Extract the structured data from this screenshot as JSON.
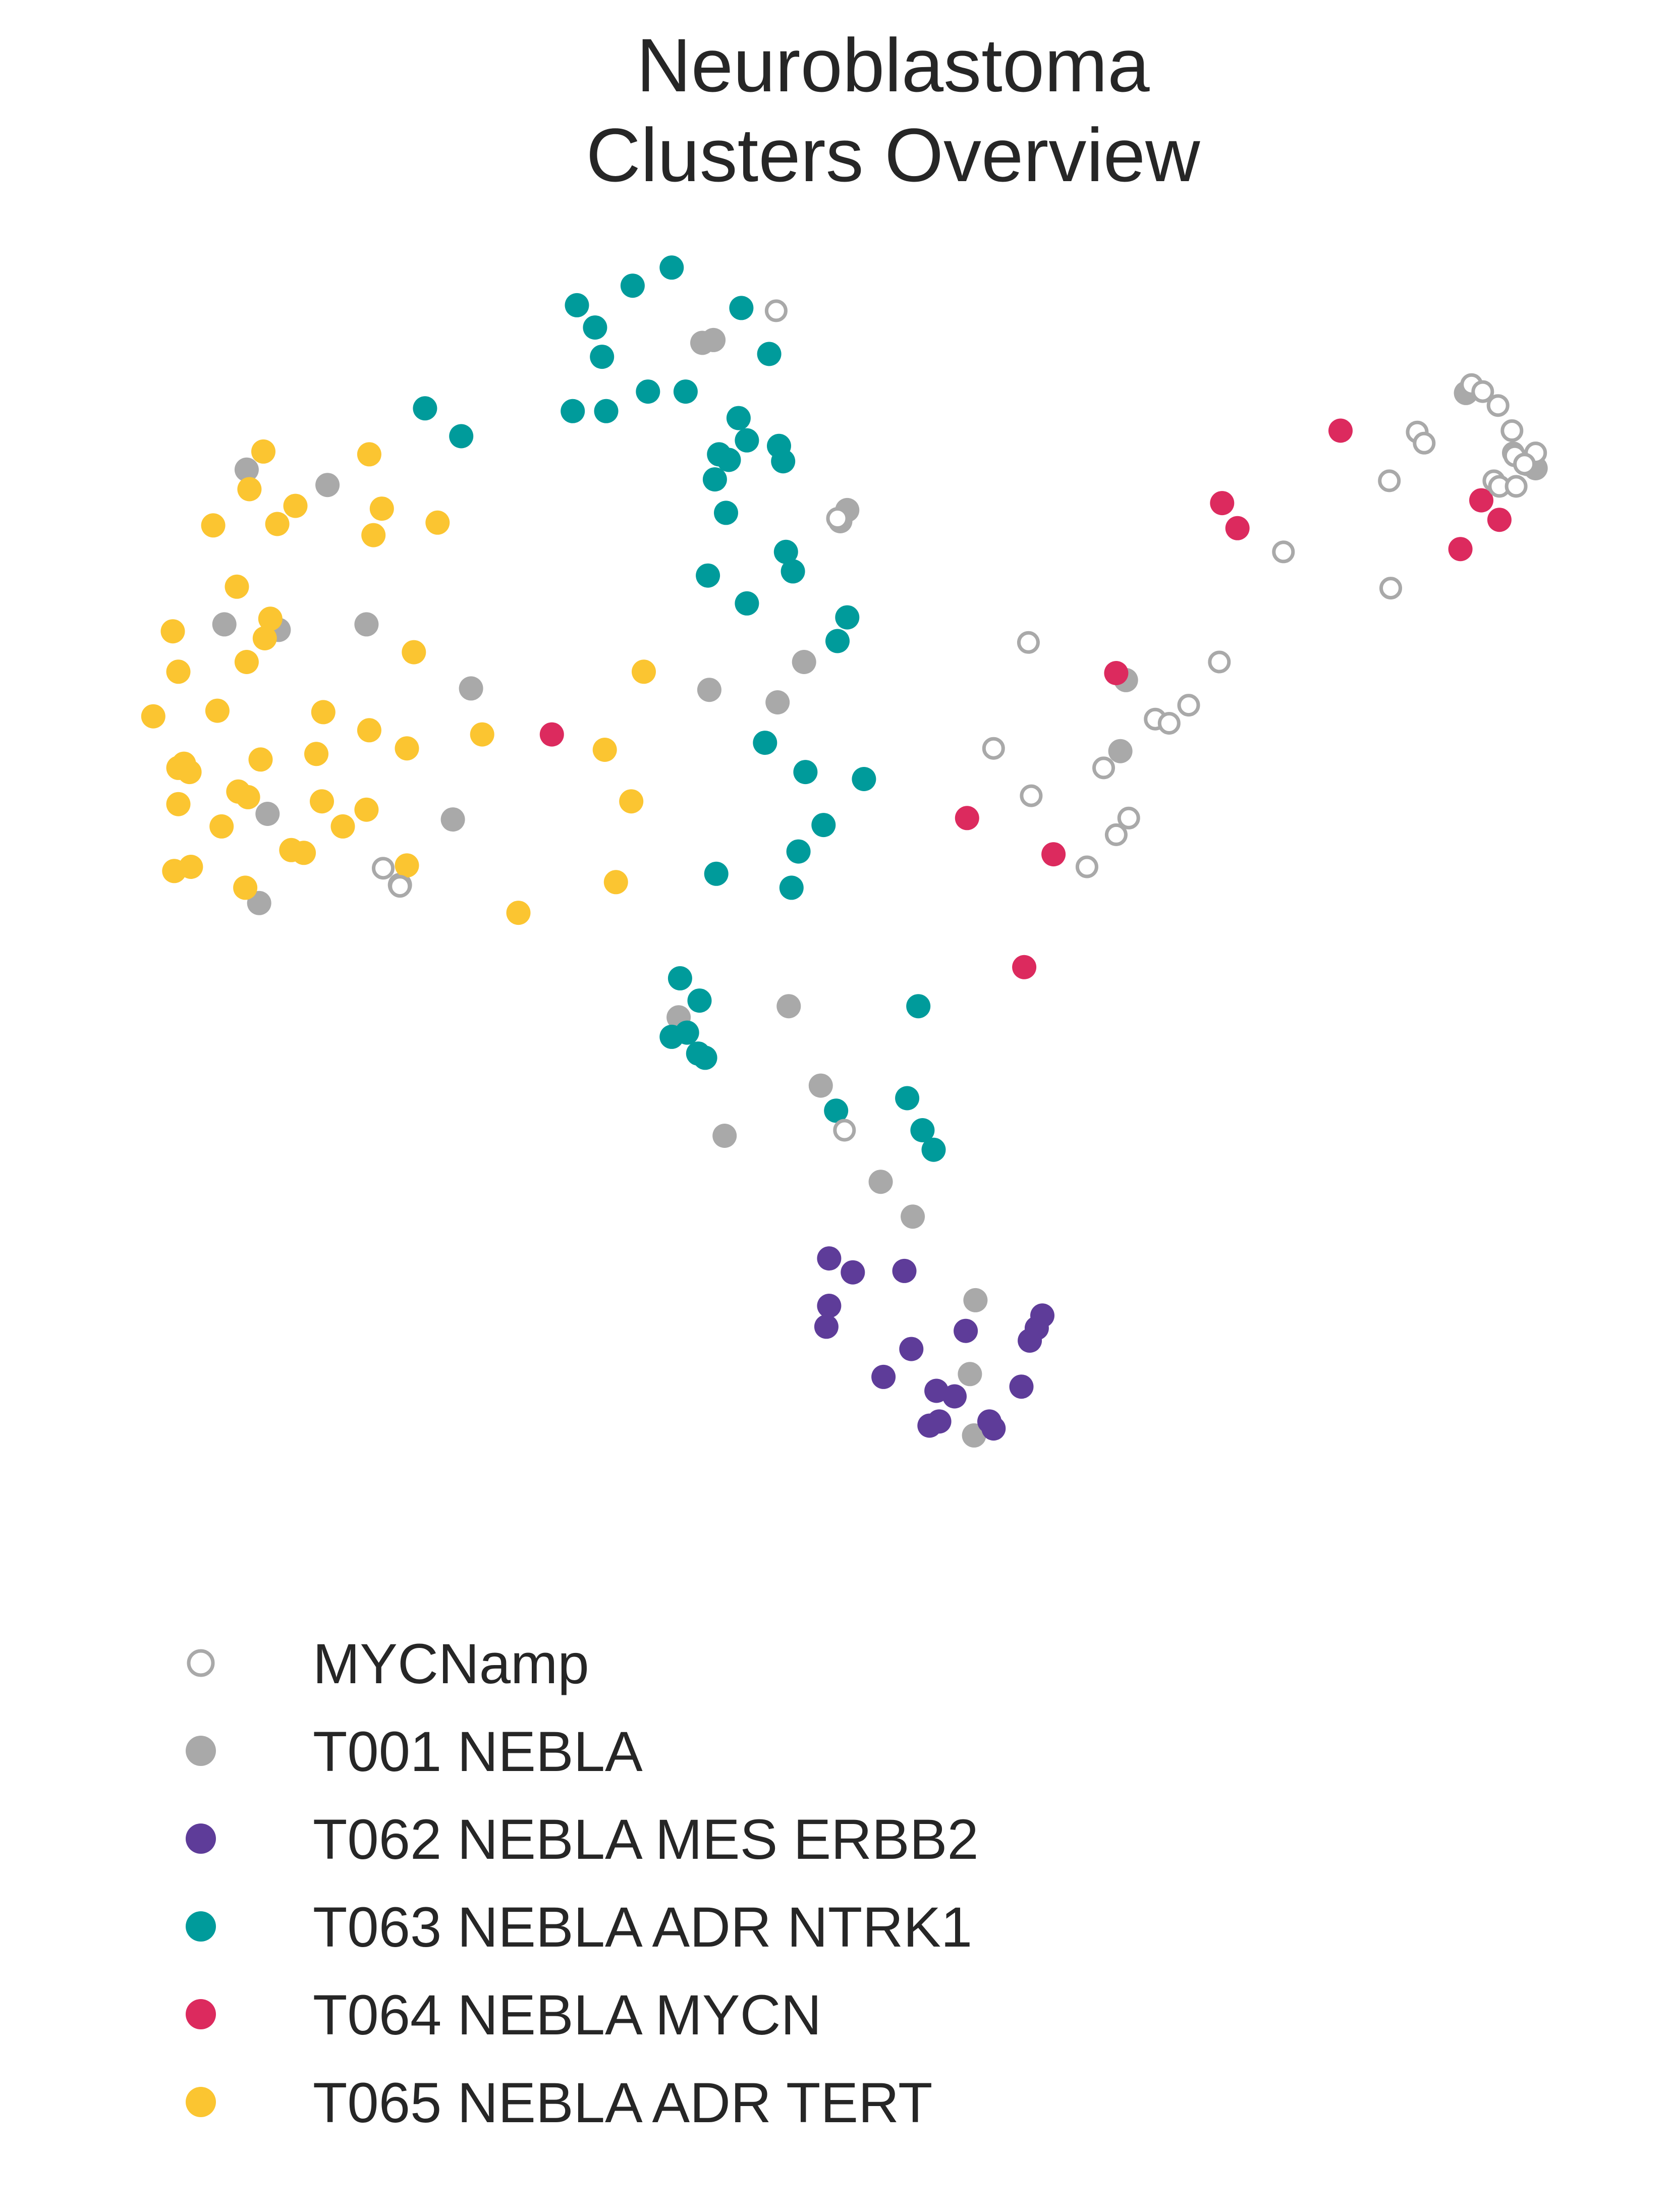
{
  "chart_data": {
    "type": "scatter",
    "title": [
      "Neuroblastoma",
      "Clusters Overview"
    ],
    "xlabel": "",
    "ylabel": "",
    "grid": false,
    "axes_visible": false,
    "legend_placement": "bottom-left",
    "series": [
      {
        "name": "T001 NEBLA",
        "marker": "filled",
        "color": "#a9a9a9",
        "points": [
          [
            177,
            337
          ],
          [
            235,
            348
          ],
          [
            161,
            448
          ],
          [
            200,
            452
          ],
          [
            263,
            448
          ],
          [
            338,
            494
          ],
          [
            325,
            588
          ],
          [
            192,
            584
          ],
          [
            186,
            648
          ],
          [
            287,
            635
          ],
          [
            504,
            246
          ],
          [
            512,
            244
          ],
          [
            608,
            366
          ],
          [
            603,
            374
          ],
          [
            577,
            475
          ],
          [
            509,
            495
          ],
          [
            558,
            504
          ],
          [
            808,
            488
          ],
          [
            804,
            539
          ],
          [
            487,
            730
          ],
          [
            566,
            722
          ],
          [
            589,
            779
          ],
          [
            520,
            815
          ],
          [
            632,
            848
          ],
          [
            655,
            873
          ],
          [
            700,
            933
          ],
          [
            696,
            986
          ],
          [
            699,
            1030
          ],
          [
            1096,
            333
          ],
          [
            1102,
            336
          ],
          [
            1052,
            282
          ]
        ]
      },
      {
        "name": "T062 NEBLA MES ERBB2",
        "marker": "filled",
        "color": "#5e3c99",
        "points": [
          [
            595,
            903
          ],
          [
            612,
            913
          ],
          [
            649,
            912
          ],
          [
            595,
            937
          ],
          [
            593,
            952
          ],
          [
            693,
            955
          ],
          [
            654,
            968
          ],
          [
            634,
            988
          ],
          [
            672,
            998
          ],
          [
            685,
            1002
          ],
          [
            674,
            1020
          ],
          [
            667,
            1023
          ],
          [
            710,
            1020
          ],
          [
            713,
            1025
          ],
          [
            733,
            995
          ],
          [
            739,
            962
          ],
          [
            744,
            953
          ],
          [
            748,
            944
          ]
        ]
      },
      {
        "name": "T063 NEBLA ADR NTRK1",
        "marker": "filled",
        "color": "#009b9b",
        "points": [
          [
            482,
            192
          ],
          [
            454,
            205
          ],
          [
            414,
            219
          ],
          [
            532,
            221
          ],
          [
            427,
            235
          ],
          [
            432,
            256
          ],
          [
            552,
            254
          ],
          [
            465,
            281
          ],
          [
            492,
            281
          ],
          [
            305,
            293
          ],
          [
            411,
            295
          ],
          [
            435,
            295
          ],
          [
            331,
            313
          ],
          [
            530,
            300
          ],
          [
            536,
            316
          ],
          [
            559,
            320
          ],
          [
            516,
            326
          ],
          [
            523,
            330
          ],
          [
            562,
            331
          ],
          [
            513,
            344
          ],
          [
            521,
            368
          ],
          [
            564,
            396
          ],
          [
            569,
            410
          ],
          [
            508,
            413
          ],
          [
            536,
            433
          ],
          [
            608,
            443
          ],
          [
            601,
            460
          ],
          [
            549,
            533
          ],
          [
            578,
            554
          ],
          [
            620,
            559
          ],
          [
            591,
            592
          ],
          [
            573,
            611
          ],
          [
            514,
            627
          ],
          [
            568,
            637
          ],
          [
            488,
            702
          ],
          [
            502,
            718
          ],
          [
            493,
            741
          ],
          [
            482,
            744
          ],
          [
            501,
            756
          ],
          [
            506,
            759
          ],
          [
            659,
            722
          ],
          [
            651,
            788
          ],
          [
            600,
            797
          ],
          [
            662,
            811
          ],
          [
            670,
            825
          ]
        ]
      },
      {
        "name": "T064 NEBLA MYCN",
        "marker": "filled",
        "color": "#dc2a5e",
        "points": [
          [
            962,
            309
          ],
          [
            877,
            361
          ],
          [
            888,
            379
          ],
          [
            1063,
            359
          ],
          [
            1076,
            373
          ],
          [
            1048,
            394
          ],
          [
            801,
            483
          ],
          [
            396,
            527
          ],
          [
            694,
            587
          ],
          [
            756,
            613
          ],
          [
            735,
            694
          ]
        ]
      },
      {
        "name": "T065 NEBLA ADR TERT",
        "marker": "filled",
        "color": "#fbc531",
        "points": [
          [
            189,
            324
          ],
          [
            265,
            326
          ],
          [
            179,
            351
          ],
          [
            212,
            363
          ],
          [
            274,
            365
          ],
          [
            199,
            376
          ],
          [
            153,
            377
          ],
          [
            268,
            384
          ],
          [
            314,
            375
          ],
          [
            170,
            421
          ],
          [
            194,
            444
          ],
          [
            124,
            453
          ],
          [
            190,
            458
          ],
          [
            177,
            475
          ],
          [
            297,
            468
          ],
          [
            128,
            482
          ],
          [
            462,
            482
          ],
          [
            110,
            514
          ],
          [
            156,
            510
          ],
          [
            232,
            511
          ],
          [
            265,
            524
          ],
          [
            187,
            545
          ],
          [
            227,
            541
          ],
          [
            292,
            537
          ],
          [
            346,
            527
          ],
          [
            434,
            538
          ],
          [
            132,
            548
          ],
          [
            128,
            551
          ],
          [
            136,
            554
          ],
          [
            171,
            568
          ],
          [
            178,
            572
          ],
          [
            231,
            575
          ],
          [
            263,
            581
          ],
          [
            453,
            575
          ],
          [
            128,
            577
          ],
          [
            246,
            593
          ],
          [
            159,
            593
          ],
          [
            209,
            610
          ],
          [
            218,
            612
          ],
          [
            137,
            622
          ],
          [
            125,
            625
          ],
          [
            292,
            621
          ],
          [
            176,
            637
          ],
          [
            442,
            633
          ],
          [
            372,
            655
          ]
        ]
      },
      {
        "name": "MYCNamp",
        "marker": "hollow",
        "color": "#a9a9a9",
        "points": [
          [
            557,
            223
          ],
          [
            601,
            372
          ],
          [
            738,
            461
          ],
          [
            275,
            623
          ],
          [
            287,
            636
          ],
          [
            606,
            811
          ],
          [
            1056,
            276
          ],
          [
            1064,
            281
          ],
          [
            1075,
            291
          ],
          [
            1085,
            309
          ],
          [
            1017,
            310
          ],
          [
            1022,
            318
          ],
          [
            1086,
            325
          ],
          [
            1102,
            325
          ],
          [
            1087,
            327
          ],
          [
            1094,
            333
          ],
          [
            1072,
            345
          ],
          [
            1076,
            349
          ],
          [
            1088,
            349
          ],
          [
            997,
            345
          ],
          [
            921,
            396
          ],
          [
            998,
            422
          ],
          [
            875,
            475
          ],
          [
            853,
            506
          ],
          [
            829,
            516
          ],
          [
            839,
            519
          ],
          [
            713,
            537
          ],
          [
            792,
            551
          ],
          [
            740,
            571
          ],
          [
            810,
            587
          ],
          [
            801,
            599
          ],
          [
            780,
            622
          ]
        ]
      }
    ],
    "hollow_point_colors": {
      "teal": "#009b9b",
      "yellow": "#fbc531",
      "crimson": "#dc2a5e",
      "gray": "#a9a9a9"
    },
    "legend": [
      {
        "label": "MYCNamp",
        "marker": "hollow",
        "color": "#a9a9a9"
      },
      {
        "label": "T001 NEBLA",
        "marker": "filled",
        "color": "#a9a9a9"
      },
      {
        "label": "T062 NEBLA MES ERBB2",
        "marker": "filled",
        "color": "#5e3c99"
      },
      {
        "label": "T063 NEBLA ADR NTRK1",
        "marker": "filled",
        "color": "#009b9b"
      },
      {
        "label": "T064 NEBLA MYCN",
        "marker": "filled",
        "color": "#dc2a5e"
      },
      {
        "label": "T065 NEBLA ADR TERT",
        "marker": "filled",
        "color": "#fbc531"
      }
    ]
  }
}
